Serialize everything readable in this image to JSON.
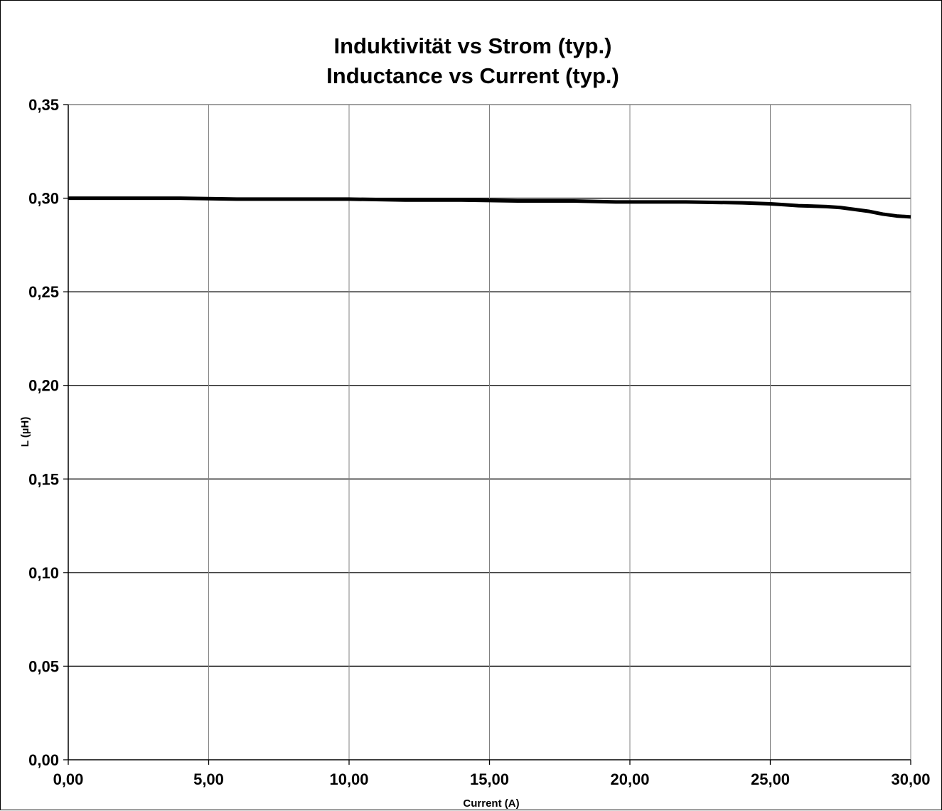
{
  "chart_data": {
    "type": "line",
    "title": "Induktivität vs Strom (typ.)",
    "subtitle": "Inductance vs Current (typ.)",
    "xlabel": "Current (A)",
    "ylabel": "L (µH)",
    "xlim": [
      0,
      30
    ],
    "ylim": [
      0,
      0.35
    ],
    "x_ticks": [
      "0,00",
      "5,00",
      "10,00",
      "15,00",
      "20,00",
      "25,00",
      "30,00"
    ],
    "y_ticks": [
      "0,00",
      "0,05",
      "0,10",
      "0,15",
      "0,20",
      "0,25",
      "0,30",
      "0,35"
    ],
    "grid": "on",
    "legend": "none",
    "series": [
      {
        "x": [
          0,
          2,
          4,
          6,
          8,
          10,
          12,
          14,
          16,
          18,
          19.5,
          22,
          24,
          25,
          25.5,
          26,
          27,
          27.5,
          28,
          28.5,
          29,
          29.5,
          30
        ],
        "y": [
          0.3,
          0.3,
          0.3,
          0.2995,
          0.2995,
          0.2995,
          0.299,
          0.299,
          0.2985,
          0.2985,
          0.298,
          0.298,
          0.2975,
          0.297,
          0.2965,
          0.296,
          0.2955,
          0.295,
          0.294,
          0.293,
          0.2915,
          0.2905,
          0.29
        ],
        "color": "#000000"
      }
    ]
  }
}
